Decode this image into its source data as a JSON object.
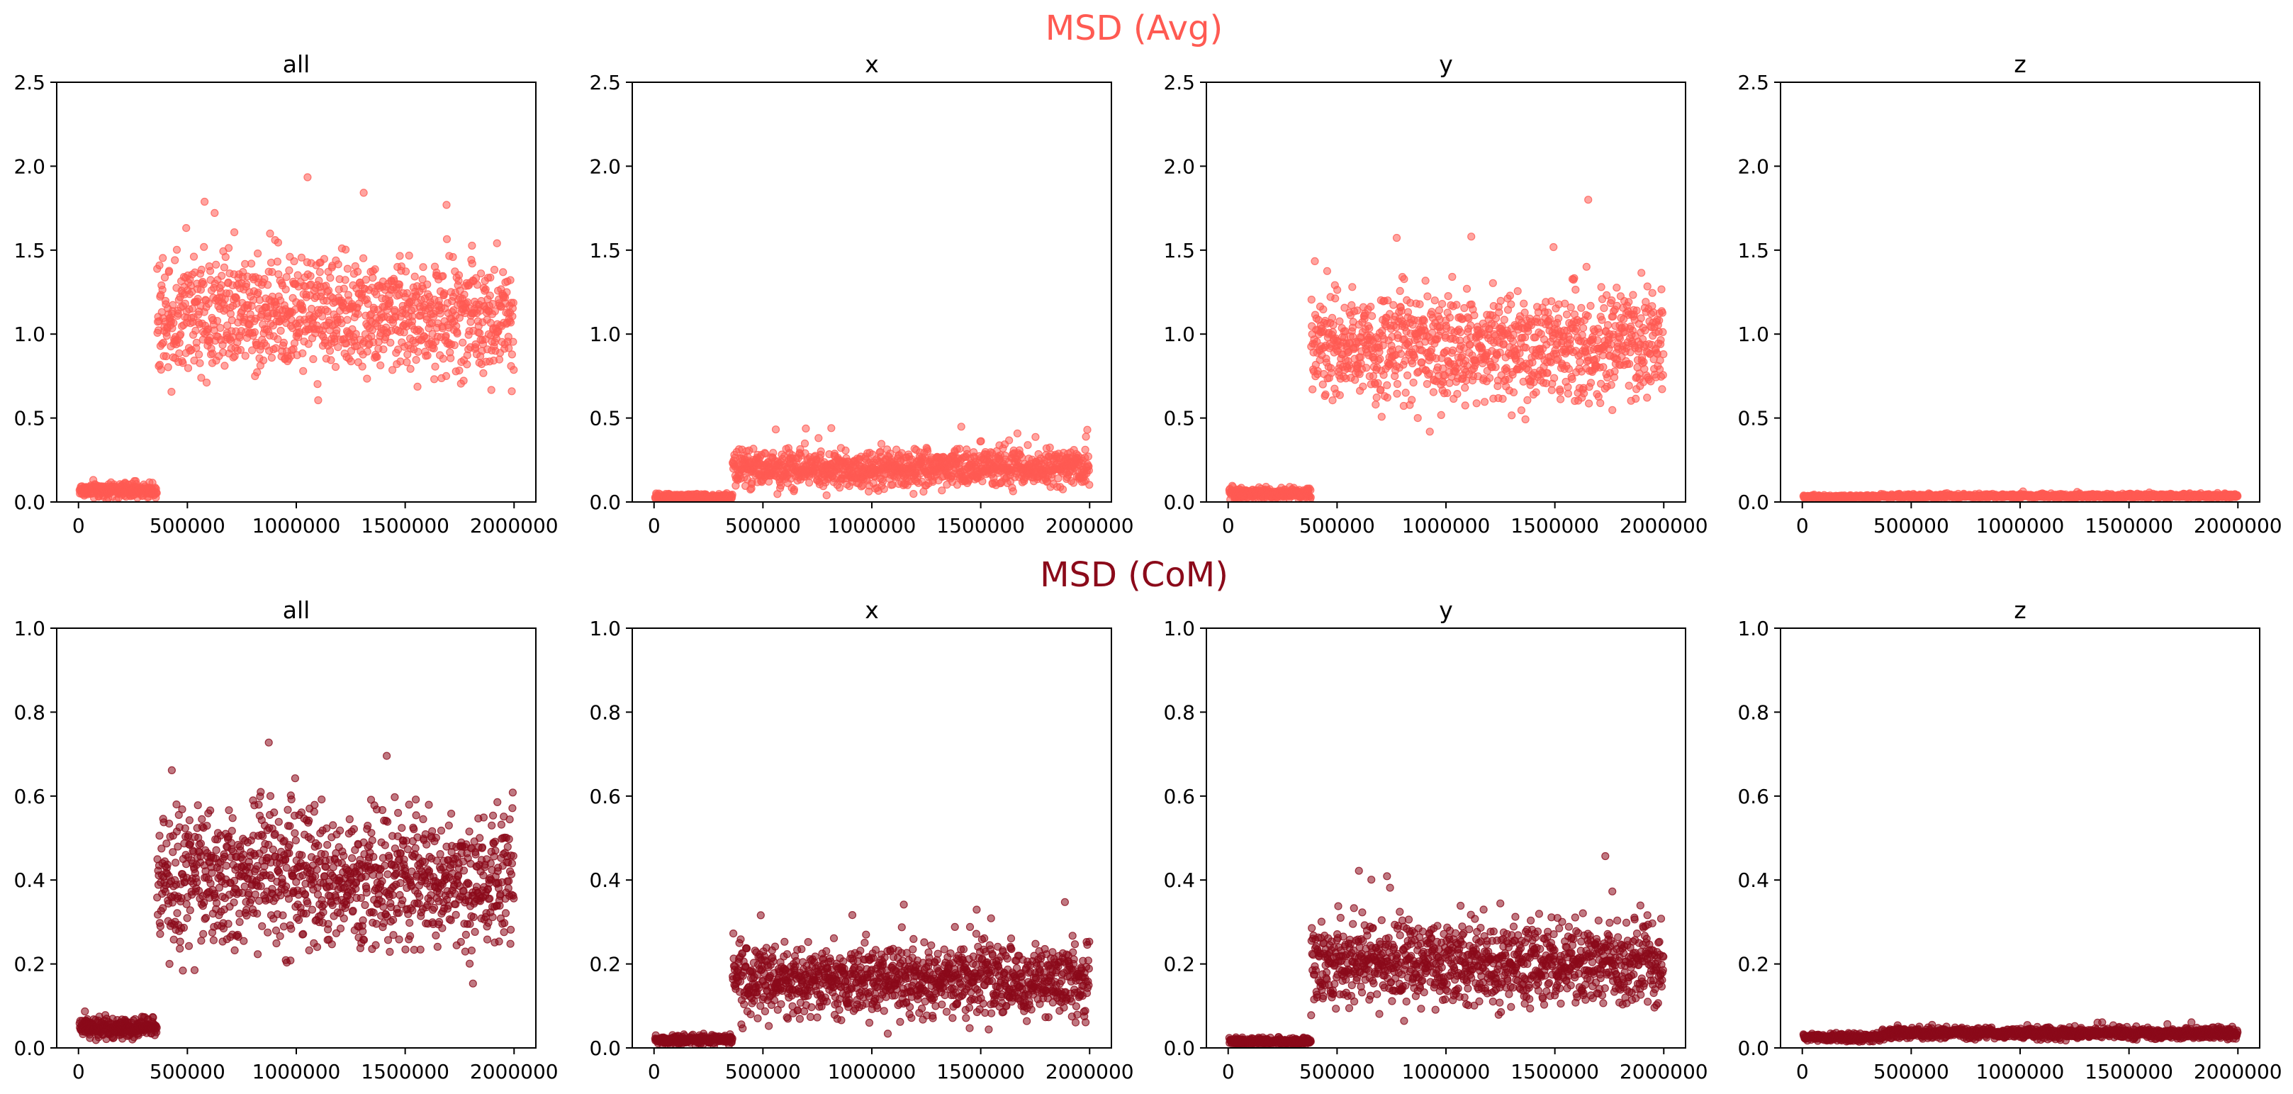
{
  "figure": {
    "rows": [
      {
        "title": "MSD (Avg)",
        "color": "#ff5a52"
      },
      {
        "title": "MSD (CoM)",
        "color": "#8b0a1a"
      }
    ]
  },
  "chart_data": [
    {
      "type": "scatter",
      "row": 0,
      "col": 0,
      "title": "all",
      "color": "#ff5a52",
      "xlim": [
        -100000,
        2100000
      ],
      "ylim": [
        0,
        2.5
      ],
      "xticks": [
        "0",
        "500000",
        "1000000",
        "1500000",
        "2000000"
      ],
      "yticks": [
        "0.0",
        "0.5",
        "1.0",
        "1.5",
        "2.0",
        "2.5"
      ],
      "baseline": {
        "pre": 0.07,
        "pre_spread": 0.04,
        "post": 1.12,
        "post_spread": 0.28,
        "switch": 360000
      }
    },
    {
      "type": "scatter",
      "row": 0,
      "col": 1,
      "title": "x",
      "color": "#ff5a52",
      "xlim": [
        -100000,
        2100000
      ],
      "ylim": [
        0,
        2.5
      ],
      "xticks": [
        "0",
        "500000",
        "1000000",
        "1500000",
        "2000000"
      ],
      "yticks": [
        "0.0",
        "0.5",
        "1.0",
        "1.5",
        "2.0",
        "2.5"
      ],
      "baseline": {
        "pre": 0.03,
        "pre_spread": 0.015,
        "post": 0.2,
        "post_spread": 0.09,
        "switch": 360000
      }
    },
    {
      "type": "scatter",
      "row": 0,
      "col": 2,
      "title": "y",
      "color": "#ff5a52",
      "xlim": [
        -100000,
        2100000
      ],
      "ylim": [
        0,
        2.5
      ],
      "xticks": [
        "0",
        "500000",
        "1000000",
        "1500000",
        "2000000"
      ],
      "yticks": [
        "0.0",
        "0.5",
        "1.0",
        "1.5",
        "2.0",
        "2.5"
      ],
      "baseline": {
        "pre": 0.05,
        "pre_spread": 0.03,
        "post": 0.92,
        "post_spread": 0.26,
        "switch": 380000
      }
    },
    {
      "type": "scatter",
      "row": 0,
      "col": 3,
      "title": "z",
      "color": "#ff5a52",
      "xlim": [
        -100000,
        2100000
      ],
      "ylim": [
        0,
        2.5
      ],
      "xticks": [
        "0",
        "500000",
        "1000000",
        "1500000",
        "2000000"
      ],
      "yticks": [
        "0.0",
        "0.5",
        "1.0",
        "1.5",
        "2.0",
        "2.5"
      ],
      "baseline": {
        "pre": 0.03,
        "pre_spread": 0.008,
        "post": 0.035,
        "post_spread": 0.01,
        "switch": 360000
      }
    },
    {
      "type": "scatter",
      "row": 1,
      "col": 0,
      "title": "all",
      "color": "#8b0a1a",
      "xlim": [
        -100000,
        2100000
      ],
      "ylim": [
        0,
        1.0
      ],
      "xticks": [
        "0",
        "500000",
        "1000000",
        "1500000",
        "2000000"
      ],
      "yticks": [
        "0.0",
        "0.2",
        "0.4",
        "0.6",
        "0.8",
        "1.0"
      ],
      "baseline": {
        "pre": 0.05,
        "pre_spread": 0.022,
        "post": 0.4,
        "post_spread": 0.13,
        "switch": 360000
      }
    },
    {
      "type": "scatter",
      "row": 1,
      "col": 1,
      "title": "x",
      "color": "#8b0a1a",
      "xlim": [
        -100000,
        2100000
      ],
      "ylim": [
        0,
        1.0
      ],
      "xticks": [
        "0",
        "500000",
        "1000000",
        "1500000",
        "2000000"
      ],
      "yticks": [
        "0.0",
        "0.2",
        "0.4",
        "0.6",
        "0.8",
        "1.0"
      ],
      "baseline": {
        "pre": 0.02,
        "pre_spread": 0.01,
        "post": 0.16,
        "post_spread": 0.07,
        "switch": 360000
      }
    },
    {
      "type": "scatter",
      "row": 1,
      "col": 2,
      "title": "y",
      "color": "#8b0a1a",
      "xlim": [
        -100000,
        2100000
      ],
      "ylim": [
        0,
        1.0
      ],
      "xticks": [
        "0",
        "500000",
        "1000000",
        "1500000",
        "2000000"
      ],
      "yticks": [
        "0.0",
        "0.2",
        "0.4",
        "0.6",
        "0.8",
        "1.0"
      ],
      "baseline": {
        "pre": 0.015,
        "pre_spread": 0.008,
        "post": 0.2,
        "post_spread": 0.08,
        "switch": 380000
      }
    },
    {
      "type": "scatter",
      "row": 1,
      "col": 3,
      "title": "z",
      "color": "#8b0a1a",
      "xlim": [
        -100000,
        2100000
      ],
      "ylim": [
        0,
        1.0
      ],
      "xticks": [
        "0",
        "500000",
        "1000000",
        "1500000",
        "2000000"
      ],
      "yticks": [
        "0.0",
        "0.2",
        "0.4",
        "0.6",
        "0.8",
        "1.0"
      ],
      "baseline": {
        "pre": 0.025,
        "pre_spread": 0.008,
        "post": 0.035,
        "post_spread": 0.01,
        "switch": 360000
      }
    }
  ]
}
